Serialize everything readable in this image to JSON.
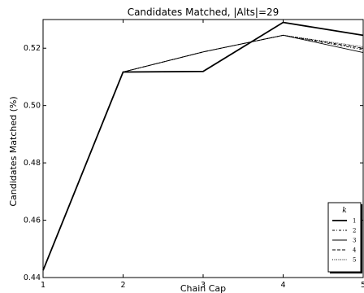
{
  "chart_data": {
    "type": "line",
    "title": "Candidates Matched, |Alts|=29",
    "xlabel": "Chain Cap",
    "ylabel": "Candidates Matched (%)",
    "x": [
      1,
      2,
      3,
      4,
      5
    ],
    "xlim": [
      1,
      5
    ],
    "ylim": [
      0.44,
      0.53
    ],
    "xticks": [
      "1",
      "2",
      "3",
      "4",
      "5"
    ],
    "yticks": [
      "0.44",
      "0.46",
      "0.48",
      "0.50",
      "0.52"
    ],
    "ytick_values": [
      0.44,
      0.46,
      0.48,
      0.5,
      0.52
    ],
    "grid": false,
    "legend": {
      "title": "k",
      "placement": "bottom-right"
    },
    "series": [
      {
        "name": "1",
        "style": "solid-thick",
        "values": [
          0.4425,
          0.5117,
          0.5119,
          0.529,
          0.5245
        ]
      },
      {
        "name": "2",
        "style": "dash-dot",
        "values": [
          0.4425,
          0.5117,
          0.5187,
          0.5245,
          0.5195
        ]
      },
      {
        "name": "3",
        "style": "solid-thin",
        "values": [
          0.4425,
          0.5117,
          0.5187,
          0.5245,
          0.5185
        ]
      },
      {
        "name": "4",
        "style": "dashed",
        "values": [
          0.4425,
          0.5117,
          0.5187,
          0.5245,
          0.52
        ]
      },
      {
        "name": "5",
        "style": "dotted",
        "values": [
          0.4425,
          0.5117,
          0.5187,
          0.5245,
          0.5205
        ]
      }
    ]
  }
}
